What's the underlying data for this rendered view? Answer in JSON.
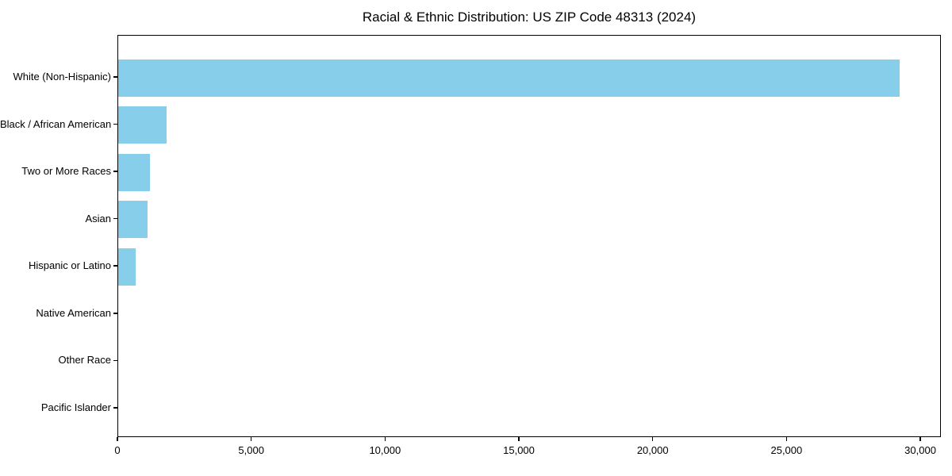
{
  "chart_data": {
    "type": "bar",
    "orientation": "horizontal",
    "title": "Racial & Ethnic Distribution: US ZIP Code 48313 (2024)",
    "categories": [
      "White (Non-Hispanic)",
      "Black / African American",
      "Two or More Races",
      "Asian",
      "Hispanic or Latino",
      "Native American",
      "Other Race",
      "Pacific Islander"
    ],
    "values": [
      29200,
      1800,
      1200,
      1100,
      650,
      0,
      0,
      0
    ],
    "xlabel": "",
    "ylabel": "",
    "xlim": [
      0,
      30680
    ],
    "xticks": [
      0,
      5000,
      10000,
      15000,
      20000,
      25000,
      30000
    ],
    "xtick_labels": [
      "0",
      "5,000",
      "10,000",
      "15,000",
      "20,000",
      "25,000",
      "30,000"
    ],
    "bar_color": "#87CEEB",
    "axis_color": "#000000",
    "grid": false,
    "legend": null
  }
}
